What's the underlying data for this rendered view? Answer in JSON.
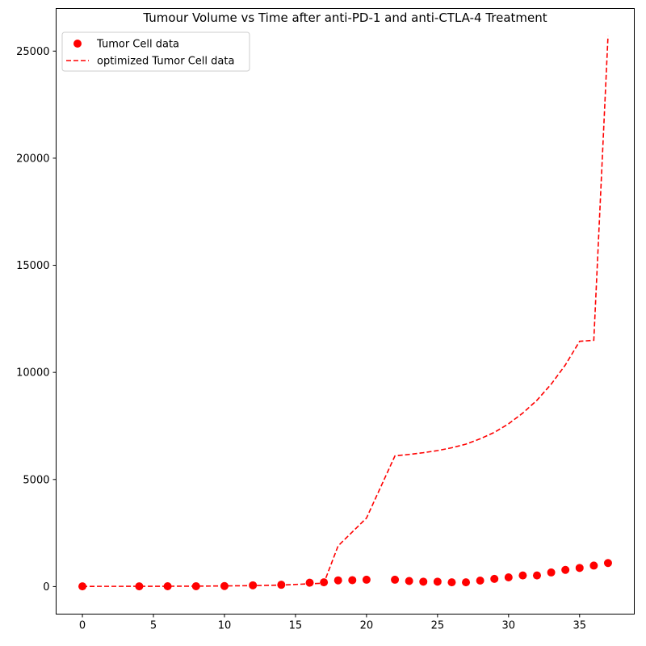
{
  "chart_data": {
    "type": "line",
    "title": "Tumour Volume vs Time after anti-PD-1 and anti-CTLA-4 Treatment",
    "xlabel": "",
    "ylabel": "",
    "xlim": [
      -1.85,
      38.85
    ],
    "ylim": [
      -1285,
      26990
    ],
    "xticks": [
      0,
      5,
      10,
      15,
      20,
      25,
      30,
      35
    ],
    "yticks": [
      0,
      5000,
      10000,
      15000,
      20000,
      25000
    ],
    "grid": false,
    "legend_position": "top-left",
    "series": [
      {
        "name": "Tumor Cell data",
        "style": "markers",
        "color": "#ff0000",
        "x": [
          0,
          4,
          6,
          8,
          10,
          12,
          14,
          16,
          17,
          18,
          19,
          20,
          22,
          23,
          24,
          25,
          26,
          27,
          28,
          29,
          30,
          31,
          32,
          33,
          34,
          35,
          36,
          37
        ],
        "y": [
          10,
          12,
          15,
          18,
          25,
          60,
          85,
          180,
          200,
          290,
          300,
          320,
          320,
          260,
          230,
          230,
          200,
          200,
          280,
          360,
          430,
          520,
          520,
          660,
          780,
          870,
          980,
          1100
        ]
      },
      {
        "name": "optimized Tumor Cell data",
        "style": "dashed",
        "color": "#ff0000",
        "x": [
          0,
          4,
          6,
          8,
          10,
          12,
          14,
          16,
          17,
          18,
          19,
          20,
          22,
          23,
          24,
          25,
          26,
          27,
          28,
          29,
          30,
          31,
          32,
          33,
          34,
          35,
          36,
          37
        ],
        "y": [
          10,
          12,
          15,
          20,
          30,
          45,
          70,
          130,
          160,
          1900,
          2550,
          3200,
          6100,
          6170,
          6250,
          6350,
          6480,
          6650,
          6900,
          7200,
          7600,
          8100,
          8700,
          9450,
          10350,
          11450,
          11500,
          25700
        ]
      }
    ]
  }
}
